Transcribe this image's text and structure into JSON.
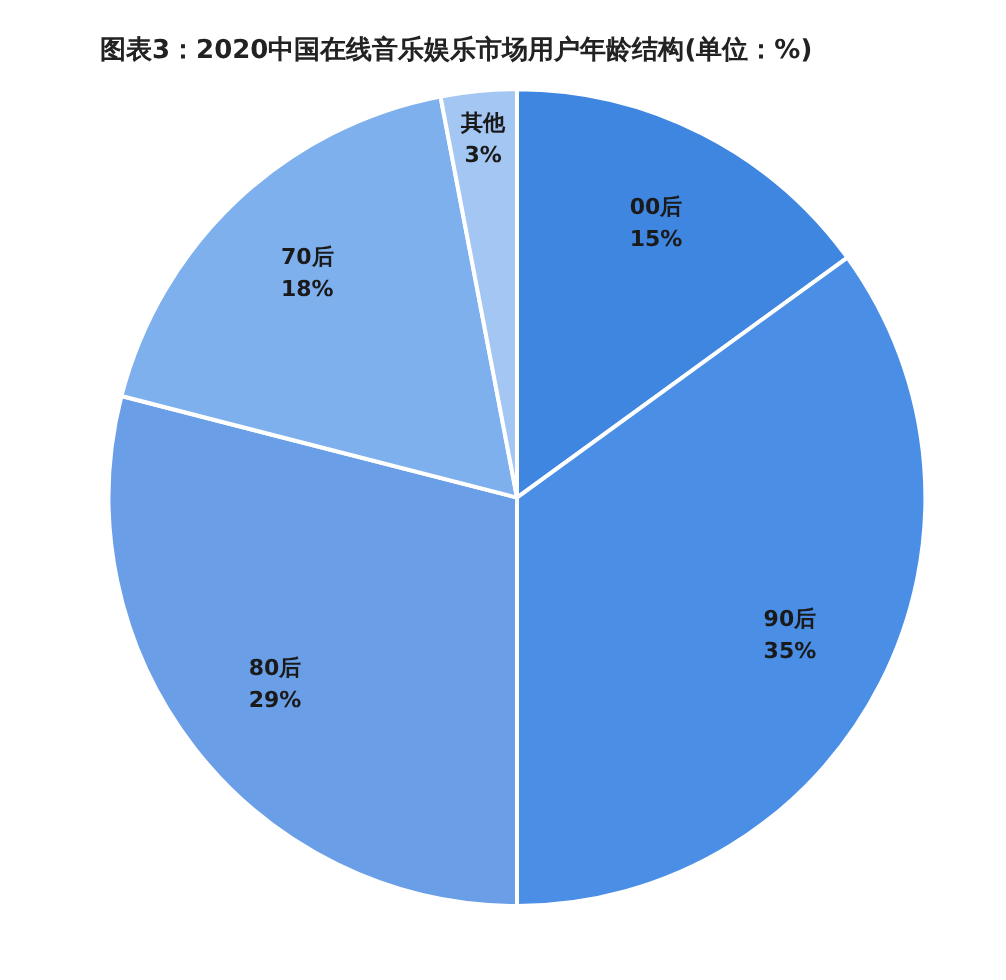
{
  "chart_data": {
    "type": "pie",
    "title": "图表3：2020中国在线音乐娱乐市场用户年龄结构(单位：%)",
    "categories": [
      "00后",
      "90后",
      "80后",
      "70后",
      "其他"
    ],
    "values": [
      15,
      35,
      29,
      18,
      3
    ],
    "value_labels": [
      "15%",
      "35%",
      "29%",
      "18%",
      "3%"
    ],
    "colors": [
      "#3f86e0",
      "#4a8ee6",
      "#6a9fe8",
      "#7fb0ee",
      "#a4c6f2"
    ],
    "legend": false
  }
}
